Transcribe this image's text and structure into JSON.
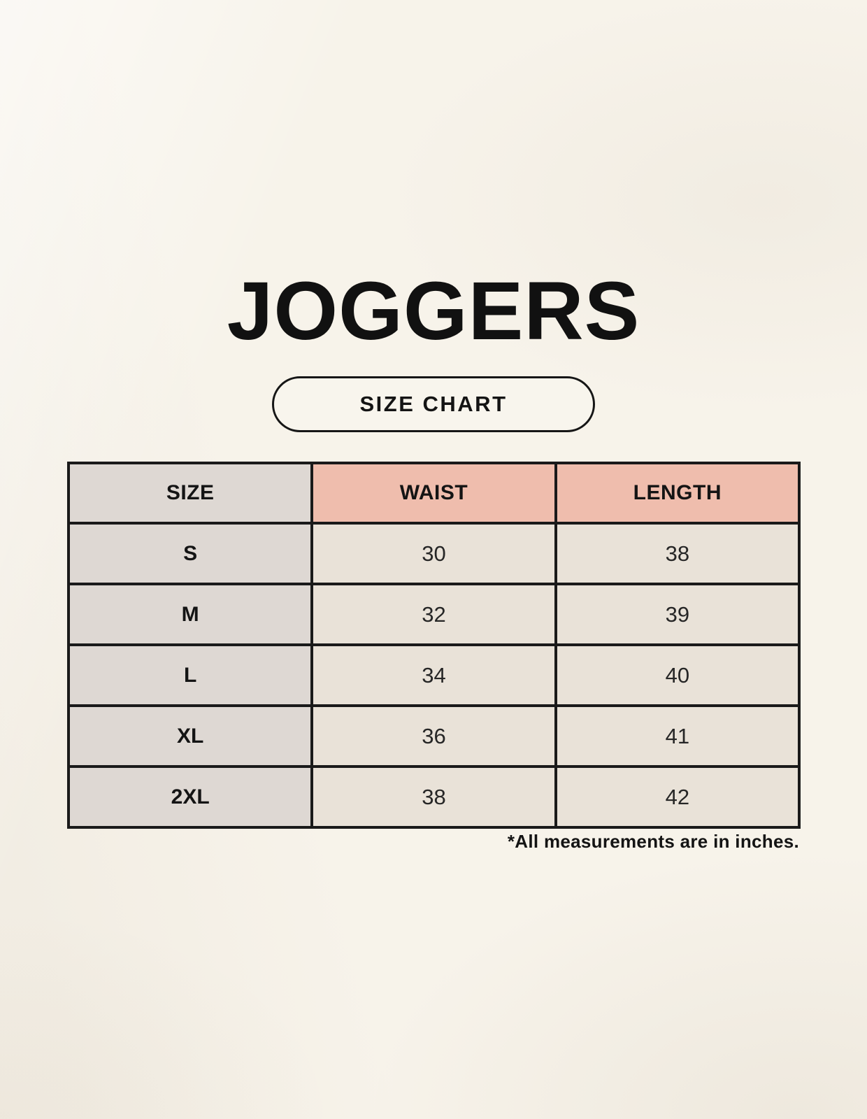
{
  "page": {
    "title": "JOGGERS",
    "badge_label": "SIZE CHART",
    "footnote": "*All measurements are in inches."
  },
  "chart_data": {
    "type": "table",
    "title": "JOGGERS",
    "subtitle": "SIZE CHART",
    "columns": [
      "SIZE",
      "WAIST",
      "LENGTH"
    ],
    "rows": [
      [
        "S",
        "30",
        "38"
      ],
      [
        "M",
        "32",
        "39"
      ],
      [
        "L",
        "34",
        "40"
      ],
      [
        "XL",
        "36",
        "41"
      ],
      [
        "2XL",
        "38",
        "42"
      ]
    ],
    "units": "inches"
  },
  "colors": {
    "background": "#F7F3EA",
    "header_accent_pink": "#EFBDAD",
    "size_column_gray": "#DED8D3",
    "cell_cream": "#E9E2D8",
    "border": "#1A1A1A",
    "text": "#141414"
  }
}
